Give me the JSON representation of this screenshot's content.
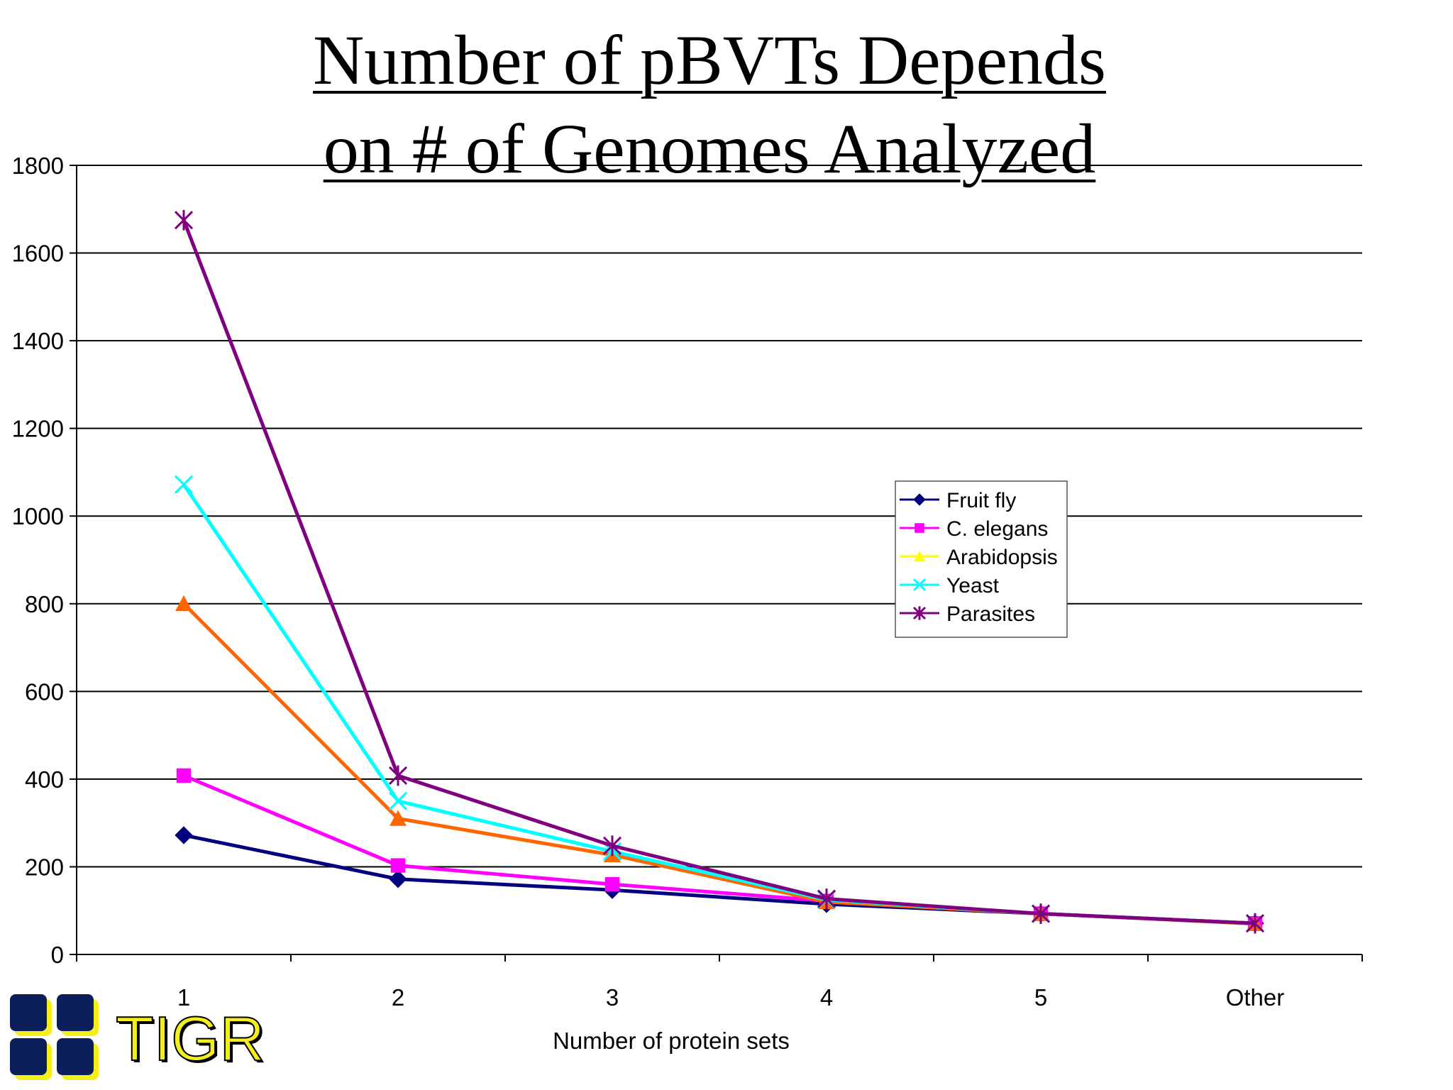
{
  "slide": {
    "title_line1": "Number of pBVTs Depends",
    "title_line2": "on # of Genomes Analyzed"
  },
  "logo": {
    "text": "TIGR",
    "colors": {
      "squares": "#0b1f5a",
      "accent": "#f4ee1c"
    }
  },
  "chart_data": {
    "type": "line",
    "title": "Number of pBVTs Depends on # of Genomes Analyzed",
    "xlabel": "Number of protein sets",
    "ylabel": "",
    "categories": [
      "1",
      "2",
      "3",
      "4",
      "5",
      "Other"
    ],
    "ylim": [
      0,
      1800
    ],
    "yticks": [
      0,
      200,
      400,
      600,
      800,
      1000,
      1200,
      1400,
      1600,
      1800
    ],
    "grid": "horizontal",
    "legend_position": "right",
    "series": [
      {
        "name": "Fruit fly",
        "values": [
          272,
          172,
          147,
          115,
          93,
          71
        ],
        "color": "#000080",
        "marker": "diamond"
      },
      {
        "name": "C. elegans",
        "values": [
          408,
          203,
          160,
          122,
          93,
          71
        ],
        "color": "#ff00ff",
        "marker": "square"
      },
      {
        "name": "Arabidopsis",
        "values": [
          800,
          310,
          227,
          120,
          93,
          70
        ],
        "color": "#ff6600",
        "legend_color": "#ffff00",
        "marker": "triangle"
      },
      {
        "name": "Yeast",
        "values": [
          1072,
          350,
          235,
          125,
          93,
          71
        ],
        "color": "#00ffff",
        "marker": "x"
      },
      {
        "name": "Parasites",
        "values": [
          1675,
          408,
          248,
          127,
          93,
          71
        ],
        "color": "#800080",
        "marker": "star"
      }
    ]
  }
}
